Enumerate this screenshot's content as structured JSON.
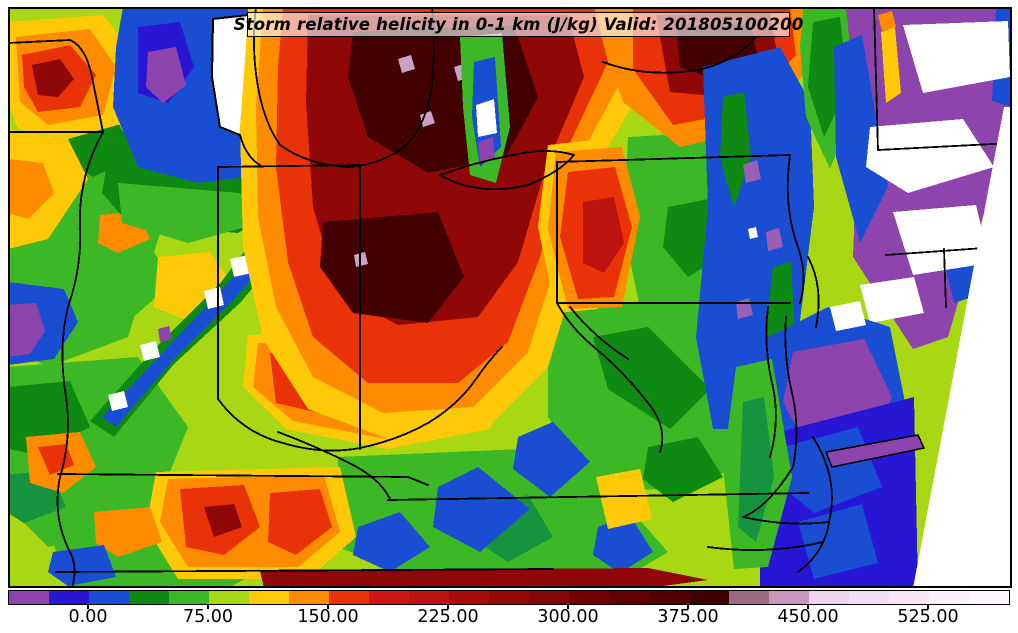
{
  "title_bar": {
    "text": "Storm relative helicity in 0-1 km (J/kg) Valid: 201805100200"
  },
  "colorbar": {
    "tick_labels": [
      "0.00",
      "75.00",
      "150.00",
      "225.00",
      "300.00",
      "375.00",
      "450.00",
      "525.00"
    ],
    "tick_values": [
      0,
      75,
      150,
      225,
      300,
      375,
      450,
      525
    ],
    "value_min": -50,
    "value_max": 575,
    "bin_size": 25,
    "colors": [
      "#8E44AD",
      "#2716D4",
      "#1A4ED2",
      "#0E8A12",
      "#3CB826",
      "#A8D814",
      "#FFC908",
      "#FF8C00",
      "#E93207",
      "#CE1712",
      "#BC1210",
      "#A80D0C",
      "#960909",
      "#840606",
      "#730303",
      "#620101",
      "#520000",
      "#3F0000",
      "#9C6B82",
      "#C897BD",
      "#EFD3EE",
      "#F3DDF3",
      "#F6E6F7",
      "#FAEFFA",
      "#FDF8FD"
    ]
  },
  "chart_data": {
    "type": "heatmap",
    "title": "Storm relative helicity in 0-1 km (J/kg)",
    "valid_time": "201805100200",
    "units": "J/kg",
    "colorbar_ticks": [
      0,
      75,
      150,
      225,
      300,
      375,
      450,
      525
    ],
    "value_range": [
      -50,
      575
    ],
    "bin_size": 25,
    "palette": [
      "#8E44AD",
      "#2716D4",
      "#1A4ED2",
      "#0E8A12",
      "#3CB826",
      "#A8D814",
      "#FFC908",
      "#FF8C00",
      "#E93207",
      "#CE1712",
      "#BC1210",
      "#A80D0C",
      "#960909",
      "#840606",
      "#730303",
      "#620101",
      "#520000",
      "#3F0000",
      "#9C6B82",
      "#C897BD",
      "#EFD3EE",
      "#F3DDF3",
      "#F6E6F7",
      "#FAEFFA",
      "#FDF8FD"
    ],
    "legend_position": "bottom",
    "map_region": "Midwest / Ohio Valley / Mid-Atlantic / New England states with state borders",
    "notable_features": {
      "maximum_helicity_area": "dark red core over Michigan, Ohio and Indiana (values 300-400 J/kg)",
      "negative_area": "purple over New England and coastal Mid-Atlantic (values below 0 J/kg)",
      "off_scale_white": "white patches over New England (values above 450 J/kg bins rendered near-white)",
      "domain_edge": "white wedge along lower-right (outside model domain)"
    }
  }
}
